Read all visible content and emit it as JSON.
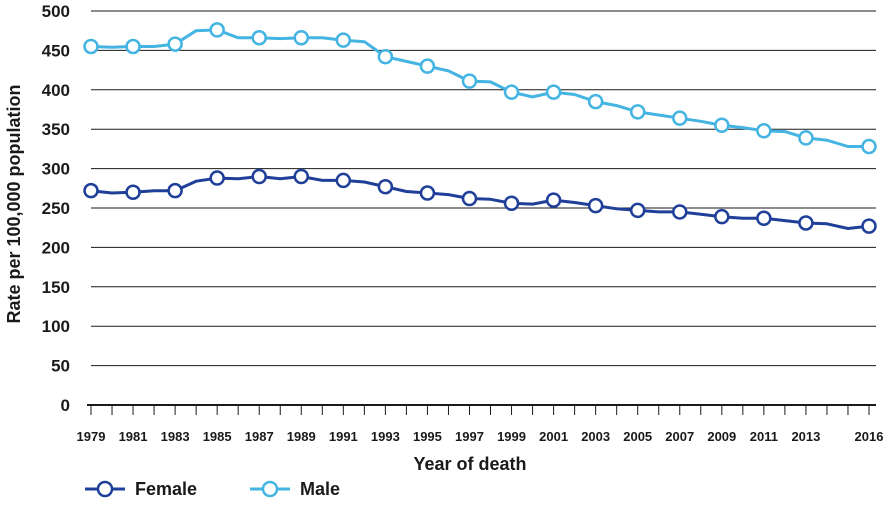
{
  "chart_data": {
    "type": "line",
    "title": "",
    "xlabel": "Year of death",
    "ylabel": "Rate per 100,000 population",
    "ylim": [
      0,
      500
    ],
    "y_ticks": [
      0,
      50,
      100,
      150,
      200,
      250,
      300,
      350,
      400,
      450,
      500
    ],
    "x_tick_labels": [
      "1979",
      "1981",
      "1983",
      "1985",
      "1987",
      "1989",
      "1991",
      "1993",
      "1995",
      "1997",
      "1999",
      "2001",
      "2003",
      "2005",
      "2007",
      "2009",
      "2011",
      "2013",
      "2016"
    ],
    "grid": "horizontal",
    "legend_position": "bottom-left",
    "x": [
      1979,
      1980,
      1981,
      1982,
      1983,
      1984,
      1985,
      1986,
      1987,
      1988,
      1989,
      1990,
      1991,
      1992,
      1993,
      1994,
      1995,
      1996,
      1997,
      1998,
      1999,
      2000,
      2001,
      2002,
      2003,
      2004,
      2005,
      2006,
      2007,
      2008,
      2009,
      2010,
      2011,
      2012,
      2013,
      2014,
      2015,
      2016
    ],
    "markers_at": [
      1979,
      1981,
      1983,
      1985,
      1987,
      1989,
      1991,
      1993,
      1995,
      1997,
      1999,
      2001,
      2003,
      2005,
      2007,
      2009,
      2011,
      2013,
      2016
    ],
    "series": [
      {
        "name": "Female",
        "color": "#1f3f99",
        "values": [
          272,
          269,
          270,
          272,
          272,
          284,
          288,
          287,
          290,
          287,
          290,
          285,
          285,
          283,
          277,
          271,
          269,
          267,
          262,
          261,
          256,
          255,
          260,
          257,
          253,
          249,
          247,
          245,
          245,
          242,
          239,
          237,
          237,
          234,
          231,
          230,
          224,
          227
        ]
      },
      {
        "name": "Male",
        "color": "#44b4e2",
        "values": [
          455,
          454,
          455,
          455,
          458,
          475,
          476,
          466,
          466,
          465,
          466,
          466,
          463,
          461,
          442,
          436,
          430,
          424,
          411,
          410,
          397,
          391,
          397,
          394,
          385,
          380,
          372,
          368,
          364,
          360,
          355,
          352,
          348,
          347,
          339,
          336,
          328,
          328
        ]
      }
    ]
  }
}
